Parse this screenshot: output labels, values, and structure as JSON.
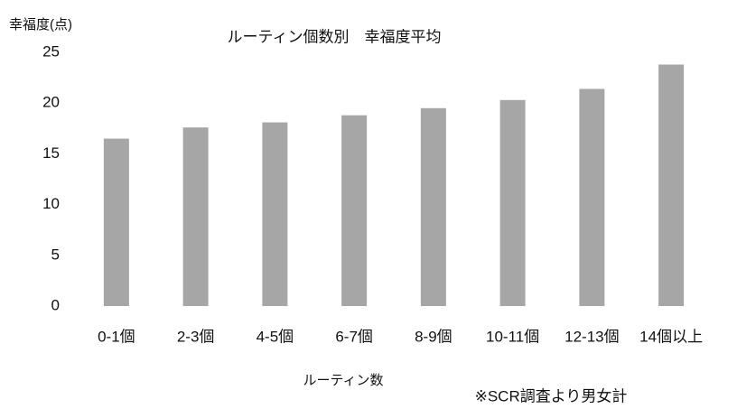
{
  "chart_data": {
    "type": "bar",
    "title": "ルーティン個数別　幸福度平均",
    "y_label": "幸福度(点)",
    "x_label": "ルーティン数",
    "note": "※SCR調査より男女計",
    "categories": [
      "0-1個",
      "2-3個",
      "4-5個",
      "6-7個",
      "8-9個",
      "10-11個",
      "12-13個",
      "14個以上"
    ],
    "values": [
      16.5,
      17.6,
      18.1,
      18.8,
      19.5,
      20.3,
      21.4,
      23.8
    ],
    "color": "#a6a6a6",
    "ylim": [
      0,
      25
    ],
    "yticks": [
      0,
      5,
      10,
      15,
      20,
      25
    ],
    "grid": false
  }
}
